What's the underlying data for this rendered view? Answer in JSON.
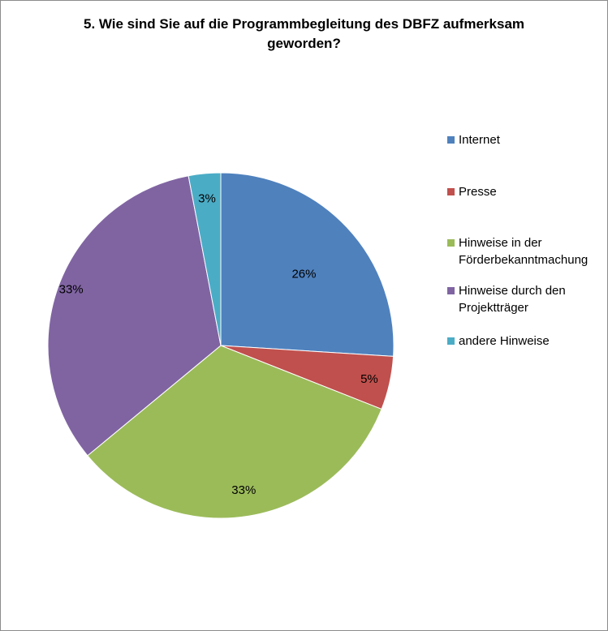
{
  "chart_data": {
    "type": "pie",
    "title": "5. Wie sind Sie auf die Programmbegleitung des DBFZ aufmerksam geworden?",
    "title_lines": [
      "5. Wie sind Sie auf die Programmbegleitung des DBFZ aufmerksam",
      "geworden?"
    ],
    "legend_position": "right",
    "slices": [
      {
        "label": "Internet",
        "label_lines": [
          "Internet"
        ],
        "value": 26,
        "display": "26%",
        "color": "#4F81BD"
      },
      {
        "label": "Presse",
        "label_lines": [
          "Presse"
        ],
        "value": 5,
        "display": "5%",
        "color": "#C0504D"
      },
      {
        "label": "Hinweise in der Förderbekanntmachung",
        "label_lines": [
          "Hinweise in der",
          "Förderbekanntmachung"
        ],
        "value": 33,
        "display": "33%",
        "color": "#9BBB59"
      },
      {
        "label": "Hinweise durch den Projektträger",
        "label_lines": [
          "Hinweise durch den",
          "Projektträger"
        ],
        "value": 33,
        "display": "33%",
        "color": "#8064A2"
      },
      {
        "label": "andere Hinweise",
        "label_lines": [
          "andere Hinweise"
        ],
        "value": 3,
        "display": "3%",
        "color": "#4BACC6"
      }
    ]
  }
}
